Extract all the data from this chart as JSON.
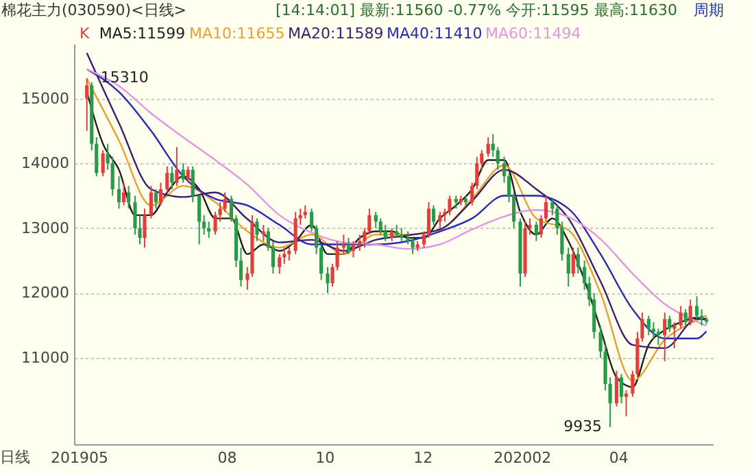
{
  "chart_data": {
    "type": "candlestick",
    "title": "棉花主力(030590)<日线>",
    "subtitle": "[14:14:01] 最新:11560 -0.77% 今开:11595 最高:11630",
    "ylim": [
      9670,
      15840
    ],
    "yticks": [
      11000,
      12000,
      13000,
      14000,
      15000
    ],
    "grid": "y",
    "legend": "top left",
    "xlim": [
      "2019-04-28",
      "2020-05-30"
    ],
    "xticks": [
      {
        "value": "2019-05-01",
        "label": "201905"
      },
      {
        "value": "2019-08-01",
        "label": "08"
      },
      {
        "value": "2019-10-01",
        "label": "10"
      },
      {
        "value": "2019-12-01",
        "label": "12"
      },
      {
        "value": "2020-02-01",
        "label": "202002"
      },
      {
        "value": "2020-04-01",
        "label": "04"
      }
    ],
    "annotations": [
      {
        "text": "15310",
        "x": "2019-05-06",
        "y": 15310
      },
      {
        "text": "9935",
        "x": "2020-03-27",
        "y": 9935
      },
      "周期",
      "日线"
    ],
    "series": [
      {
        "name": "K",
        "x": [
          "2019-05-06",
          "2019-05-09",
          "2019-05-12",
          "2019-05-16",
          "2019-05-19",
          "2019-05-22",
          "2019-05-26",
          "2019-05-29",
          "2019-06-01",
          "2019-06-05",
          "2019-06-08",
          "2019-06-11",
          "2019-06-15",
          "2019-06-18",
          "2019-06-21",
          "2019-06-25",
          "2019-06-28",
          "2019-07-01",
          "2019-07-05",
          "2019-07-08",
          "2019-07-11",
          "2019-07-15",
          "2019-07-18",
          "2019-07-21",
          "2019-07-25",
          "2019-07-28",
          "2019-07-31",
          "2019-08-04",
          "2019-08-07",
          "2019-08-10",
          "2019-08-14",
          "2019-08-17",
          "2019-08-20",
          "2019-08-24",
          "2019-08-27",
          "2019-08-30",
          "2019-09-03",
          "2019-09-06",
          "2019-09-09",
          "2019-09-13",
          "2019-09-16",
          "2019-09-19",
          "2019-09-23",
          "2019-09-26",
          "2019-09-29",
          "2019-10-03",
          "2019-10-06",
          "2019-10-09",
          "2019-10-13",
          "2019-10-16",
          "2019-10-19",
          "2019-10-23",
          "2019-10-26",
          "2019-10-29",
          "2019-11-02",
          "2019-11-05",
          "2019-11-08",
          "2019-11-12",
          "2019-11-15",
          "2019-11-18",
          "2019-11-22",
          "2019-11-25",
          "2019-11-28",
          "2019-12-02",
          "2019-12-05",
          "2019-12-08",
          "2019-12-12",
          "2019-12-15",
          "2019-12-18",
          "2019-12-22",
          "2019-12-25",
          "2019-12-28",
          "2020-01-01",
          "2020-01-04",
          "2020-01-07",
          "2020-01-11",
          "2020-01-14",
          "2020-01-17",
          "2020-01-21",
          "2020-01-24",
          "2020-01-27",
          "2020-01-31",
          "2020-02-03",
          "2020-02-06",
          "2020-02-10",
          "2020-02-13",
          "2020-02-16",
          "2020-02-20",
          "2020-02-23",
          "2020-02-26",
          "2020-03-01",
          "2020-03-04",
          "2020-03-07",
          "2020-03-11",
          "2020-03-14",
          "2020-03-17",
          "2020-03-21",
          "2020-03-24",
          "2020-03-27",
          "2020-03-31",
          "2020-04-03",
          "2020-04-06",
          "2020-04-10",
          "2020-04-13",
          "2020-04-16",
          "2020-04-20",
          "2020-04-23",
          "2020-04-26",
          "2020-04-30",
          "2020-05-03",
          "2020-05-06",
          "2020-05-10",
          "2020-05-13",
          "2020-05-16",
          "2020-05-20",
          "2020-05-23",
          "2020-05-26"
        ],
        "ohlc": [
          [
            15000,
            15310,
            14500,
            15200
          ],
          [
            15200,
            15250,
            14200,
            14300
          ],
          [
            14300,
            14400,
            13800,
            13850
          ],
          [
            13850,
            14200,
            13800,
            14150
          ],
          [
            14150,
            14300,
            13900,
            14000
          ],
          [
            14000,
            14100,
            13500,
            13600
          ],
          [
            13600,
            13800,
            13300,
            13400
          ],
          [
            13400,
            13700,
            13350,
            13550
          ],
          [
            13550,
            13650,
            13300,
            13400
          ],
          [
            13400,
            13500,
            12900,
            13000
          ],
          [
            13000,
            13200,
            12750,
            12850
          ],
          [
            12850,
            13300,
            12700,
            13200
          ],
          [
            13200,
            13650,
            13150,
            13550
          ],
          [
            13550,
            13600,
            13300,
            13400
          ],
          [
            13400,
            13700,
            13350,
            13600
          ],
          [
            13600,
            13950,
            13550,
            13850
          ],
          [
            13850,
            13950,
            13600,
            13700
          ],
          [
            13700,
            14250,
            13650,
            13900
          ],
          [
            13900,
            14000,
            13700,
            13750
          ],
          [
            13750,
            13950,
            13700,
            13900
          ],
          [
            13900,
            13950,
            13400,
            13500
          ],
          [
            13500,
            13500,
            12750,
            13100
          ],
          [
            13100,
            13200,
            12900,
            13000
          ],
          [
            13000,
            13100,
            12850,
            12950
          ],
          [
            12950,
            13250,
            12900,
            13200
          ],
          [
            13200,
            13400,
            13100,
            13300
          ],
          [
            13300,
            13550,
            13250,
            13450
          ],
          [
            13450,
            13500,
            13100,
            13150
          ],
          [
            13150,
            13200,
            12400,
            12500
          ],
          [
            12500,
            12700,
            12100,
            12200
          ],
          [
            12200,
            12400,
            12050,
            12300
          ],
          [
            12300,
            13200,
            12250,
            13100
          ],
          [
            13100,
            13150,
            12800,
            12900
          ],
          [
            12900,
            13050,
            12800,
            12950
          ],
          [
            12950,
            13000,
            12650,
            12700
          ],
          [
            12700,
            12800,
            12300,
            12400
          ],
          [
            12400,
            12600,
            12300,
            12550
          ],
          [
            12550,
            12700,
            12450,
            12600
          ],
          [
            12600,
            12700,
            12500,
            12650
          ],
          [
            12650,
            13250,
            12600,
            13150
          ],
          [
            13150,
            13300,
            13050,
            13200
          ],
          [
            13200,
            13350,
            13150,
            13250
          ],
          [
            13250,
            13300,
            12950,
            13000
          ],
          [
            13000,
            13050,
            12600,
            12700
          ],
          [
            12700,
            12750,
            12200,
            12300
          ],
          [
            12300,
            12400,
            12000,
            12150
          ],
          [
            12150,
            12450,
            12100,
            12400
          ],
          [
            12400,
            12800,
            12350,
            12700
          ],
          [
            12700,
            12900,
            12600,
            12750
          ],
          [
            12750,
            12850,
            12600,
            12650
          ],
          [
            12650,
            12800,
            12550,
            12750
          ],
          [
            12750,
            12900,
            12650,
            12800
          ],
          [
            12800,
            13000,
            12700,
            12950
          ],
          [
            12950,
            13300,
            12900,
            13200
          ],
          [
            13200,
            13250,
            13000,
            13100
          ],
          [
            13100,
            13150,
            12900,
            12950
          ],
          [
            12950,
            13050,
            12800,
            12850
          ],
          [
            12850,
            13000,
            12800,
            12950
          ],
          [
            12950,
            13050,
            12850,
            12900
          ],
          [
            12900,
            13000,
            12800,
            12850
          ],
          [
            12850,
            12950,
            12750,
            12800
          ],
          [
            12800,
            12850,
            12600,
            12700
          ],
          [
            12700,
            12800,
            12650,
            12750
          ],
          [
            12750,
            12950,
            12700,
            12900
          ],
          [
            12900,
            13400,
            12850,
            13300
          ],
          [
            13300,
            13350,
            13050,
            13100
          ],
          [
            13100,
            13250,
            13000,
            13200
          ],
          [
            13200,
            13300,
            13100,
            13250
          ],
          [
            13250,
            13500,
            13200,
            13450
          ],
          [
            13450,
            13500,
            13300,
            13400
          ],
          [
            13400,
            13500,
            13350,
            13450
          ],
          [
            13450,
            13500,
            13350,
            13400
          ],
          [
            13400,
            13700,
            13350,
            13650
          ],
          [
            13650,
            14100,
            13600,
            14000
          ],
          [
            14000,
            14200,
            13900,
            14150
          ],
          [
            14150,
            14400,
            14100,
            14300
          ],
          [
            14300,
            14450,
            14100,
            14200
          ],
          [
            14200,
            14250,
            13900,
            14000
          ],
          [
            14000,
            14100,
            13700,
            13800
          ],
          [
            13800,
            13850,
            13400,
            13500
          ],
          [
            13500,
            13550,
            13000,
            13100
          ],
          [
            13100,
            13150,
            12100,
            12300
          ],
          [
            12300,
            13100,
            12250,
            13000
          ],
          [
            13000,
            13150,
            12900,
            13050
          ],
          [
            13050,
            13100,
            12800,
            12900
          ],
          [
            12900,
            13200,
            12850,
            13150
          ],
          [
            13150,
            13500,
            13100,
            13400
          ],
          [
            13400,
            13450,
            13200,
            13300
          ],
          [
            13300,
            13350,
            12900,
            13000
          ],
          [
            13000,
            13100,
            12500,
            12600
          ],
          [
            12600,
            12700,
            12100,
            12300
          ],
          [
            12300,
            12700,
            12250,
            12600
          ],
          [
            12600,
            12700,
            12300,
            12400
          ],
          [
            12400,
            12500,
            12050,
            12150
          ],
          [
            12150,
            12250,
            11800,
            11900
          ],
          [
            11900,
            12000,
            11300,
            11400
          ],
          [
            11400,
            11500,
            11000,
            11100
          ],
          [
            11100,
            11200,
            10500,
            10600
          ],
          [
            10600,
            10700,
            9935,
            10300
          ],
          [
            10300,
            10800,
            10250,
            10700
          ],
          [
            10700,
            10750,
            10300,
            10400
          ],
          [
            10400,
            10500,
            10100,
            10450
          ],
          [
            10450,
            10800,
            10400,
            10750
          ],
          [
            10750,
            11400,
            10700,
            11300
          ],
          [
            11300,
            11700,
            11250,
            11600
          ],
          [
            11600,
            11650,
            11350,
            11450
          ],
          [
            11450,
            11550,
            11300,
            11400
          ],
          [
            11400,
            11450,
            11200,
            11350
          ],
          [
            11350,
            11700,
            10950,
            11600
          ],
          [
            11600,
            11650,
            11400,
            11450
          ],
          [
            11450,
            11550,
            11150,
            11500
          ],
          [
            11500,
            11800,
            11450,
            11700
          ],
          [
            11700,
            11750,
            11500,
            11550
          ],
          [
            11550,
            11900,
            11500,
            11800
          ],
          [
            11800,
            11950,
            11600,
            11650
          ],
          [
            11650,
            11750,
            11500,
            11600
          ],
          [
            11595,
            11630,
            11520,
            11560
          ]
        ],
        "colors": [
          "#e0403c",
          "#2a9a48",
          "#2a9a48",
          "#e0403c",
          "#2a9a48",
          "#2a9a48",
          "#2a9a48",
          "#e0403c",
          "#2a9a48",
          "#2a9a48",
          "#2a9a48",
          "#e0403c",
          "#e0403c",
          "#2a9a48",
          "#e0403c",
          "#e0403c",
          "#2a9a48",
          "#e0403c",
          "#2a9a48",
          "#e0403c",
          "#2a9a48",
          "#2a9a48",
          "#2a9a48",
          "#2a9a48",
          "#e0403c",
          "#e0403c",
          "#e0403c",
          "#2a9a48",
          "#2a9a48",
          "#2a9a48",
          "#e0403c",
          "#e0403c",
          "#2a9a48",
          "#e0403c",
          "#2a9a48",
          "#2a9a48",
          "#e0403c",
          "#e0403c",
          "#e0403c",
          "#e0403c",
          "#e0403c",
          "#e0403c",
          "#2a9a48",
          "#2a9a48",
          "#2a9a48",
          "#2a9a48",
          "#e0403c",
          "#e0403c",
          "#e0403c",
          "#2a9a48",
          "#e0403c",
          "#e0403c",
          "#e0403c",
          "#e0403c",
          "#2a9a48",
          "#2a9a48",
          "#2a9a48",
          "#e0403c",
          "#2a9a48",
          "#2a9a48",
          "#2a9a48",
          "#2a9a48",
          "#e0403c",
          "#e0403c",
          "#e0403c",
          "#2a9a48",
          "#e0403c",
          "#e0403c",
          "#e0403c",
          "#2a9a48",
          "#e0403c",
          "#2a9a48",
          "#e0403c",
          "#e0403c",
          "#e0403c",
          "#e0403c",
          "#2a9a48",
          "#2a9a48",
          "#2a9a48",
          "#2a9a48",
          "#2a9a48",
          "#2a9a48",
          "#e0403c",
          "#e0403c",
          "#2a9a48",
          "#e0403c",
          "#e0403c",
          "#2a9a48",
          "#2a9a48",
          "#2a9a48",
          "#2a9a48",
          "#e0403c",
          "#2a9a48",
          "#2a9a48",
          "#2a9a48",
          "#2a9a48",
          "#2a9a48",
          "#2a9a48",
          "#2a9a48",
          "#e0403c",
          "#2a9a48",
          "#e0403c",
          "#e0403c",
          "#e0403c",
          "#e0403c",
          "#2a9a48",
          "#2a9a48",
          "#2a9a48",
          "#e0403c",
          "#2a9a48",
          "#e0403c",
          "#e0403c",
          "#2a9a48",
          "#e0403c",
          "#2a9a48",
          "#2a9a48",
          "#2a9a48"
        ]
      },
      {
        "name": "MA5:11599",
        "type": "line",
        "color": "#202020",
        "x": [
          "2019-05-06",
          "2019-05-16",
          "2019-05-26",
          "2019-06-05",
          "2019-06-15",
          "2019-06-25",
          "2019-07-05",
          "2019-07-15",
          "2019-07-25",
          "2019-08-04",
          "2019-08-14",
          "2019-08-24",
          "2019-09-03",
          "2019-09-13",
          "2019-09-23",
          "2019-10-03",
          "2019-10-13",
          "2019-10-23",
          "2019-11-02",
          "2019-11-12",
          "2019-11-22",
          "2019-12-02",
          "2019-12-12",
          "2019-12-22",
          "2020-01-01",
          "2020-01-11",
          "2020-01-21",
          "2020-01-31",
          "2020-02-10",
          "2020-02-20",
          "2020-03-01",
          "2020-03-11",
          "2020-03-21",
          "2020-03-31",
          "2020-04-10",
          "2020-04-20",
          "2020-04-30",
          "2020-05-10",
          "2020-05-20",
          "2020-05-26"
        ],
        "values": [
          15100,
          14300,
          13900,
          13200,
          13200,
          13550,
          13800,
          13600,
          13150,
          13150,
          12600,
          12750,
          12650,
          12800,
          13050,
          12600,
          12600,
          12850,
          12950,
          12950,
          12850,
          12850,
          13150,
          13350,
          13600,
          14050,
          14050,
          13250,
          12900,
          13150,
          12800,
          12200,
          11450,
          10700,
          10550,
          11200,
          11430,
          11550,
          11620,
          11599
        ]
      },
      {
        "name": "MA10:11655",
        "type": "line",
        "color": "#e8a030",
        "x": [
          "2019-05-06",
          "2019-05-26",
          "2019-06-15",
          "2019-07-05",
          "2019-07-25",
          "2019-08-14",
          "2019-09-03",
          "2019-09-23",
          "2019-10-13",
          "2019-11-02",
          "2019-11-22",
          "2019-12-12",
          "2020-01-01",
          "2020-01-21",
          "2020-02-10",
          "2020-03-01",
          "2020-03-21",
          "2020-04-10",
          "2020-04-30",
          "2020-05-20",
          "2020-05-26"
        ],
        "values": [
          15300,
          14350,
          13350,
          13650,
          13400,
          12950,
          12700,
          12900,
          12600,
          12900,
          12900,
          12980,
          13450,
          13970,
          13150,
          12970,
          12000,
          10650,
          11280,
          11580,
          11655
        ]
      },
      {
        "name": "MA20:11589",
        "type": "line",
        "color": "#3a1e6a",
        "x": [
          "2019-05-06",
          "2019-05-26",
          "2019-06-15",
          "2019-07-05",
          "2019-07-25",
          "2019-08-14",
          "2019-09-03",
          "2019-09-23",
          "2019-10-13",
          "2019-11-02",
          "2019-11-22",
          "2019-12-12",
          "2020-01-01",
          "2020-01-21",
          "2020-02-10",
          "2020-03-01",
          "2020-03-21",
          "2020-04-10",
          "2020-04-30",
          "2020-05-20",
          "2020-05-26"
        ],
        "values": [
          15700,
          14620,
          13600,
          13480,
          13550,
          13140,
          12780,
          12820,
          12650,
          12820,
          12890,
          12980,
          13420,
          13900,
          13600,
          13150,
          12180,
          11200,
          11150,
          11600,
          11589
        ]
      },
      {
        "name": "MA40:11410",
        "type": "line",
        "color": "#2828b0",
        "x": [
          "2019-05-06",
          "2019-05-26",
          "2019-06-15",
          "2019-07-05",
          "2019-07-25",
          "2019-08-14",
          "2019-09-03",
          "2019-09-23",
          "2019-10-13",
          "2019-11-02",
          "2019-11-22",
          "2019-12-12",
          "2020-01-01",
          "2020-01-21",
          "2020-02-10",
          "2020-03-01",
          "2020-03-21",
          "2020-04-10",
          "2020-04-30",
          "2020-05-20",
          "2020-05-26"
        ],
        "values": [
          15450,
          15100,
          14500,
          13800,
          13450,
          13350,
          13050,
          12750,
          12750,
          12750,
          12800,
          12950,
          13150,
          13500,
          13500,
          13300,
          12600,
          11750,
          11300,
          11300,
          11410
        ]
      },
      {
        "name": "MA60:11494",
        "type": "line",
        "color": "#e096e0",
        "x": [
          "2019-05-06",
          "2019-05-26",
          "2019-06-15",
          "2019-07-05",
          "2019-07-25",
          "2019-08-14",
          "2019-09-03",
          "2019-09-23",
          "2019-10-13",
          "2019-11-02",
          "2019-11-22",
          "2019-12-12",
          "2020-01-01",
          "2020-01-21",
          "2020-02-10",
          "2020-03-01",
          "2020-03-21",
          "2020-04-10",
          "2020-04-30",
          "2020-05-20",
          "2020-05-26"
        ],
        "values": [
          15450,
          15190,
          14770,
          14400,
          14050,
          13670,
          13200,
          12930,
          12780,
          12750,
          12680,
          12750,
          12980,
          13180,
          13280,
          13170,
          12830,
          12300,
          11830,
          11560,
          11494
        ]
      }
    ]
  }
}
